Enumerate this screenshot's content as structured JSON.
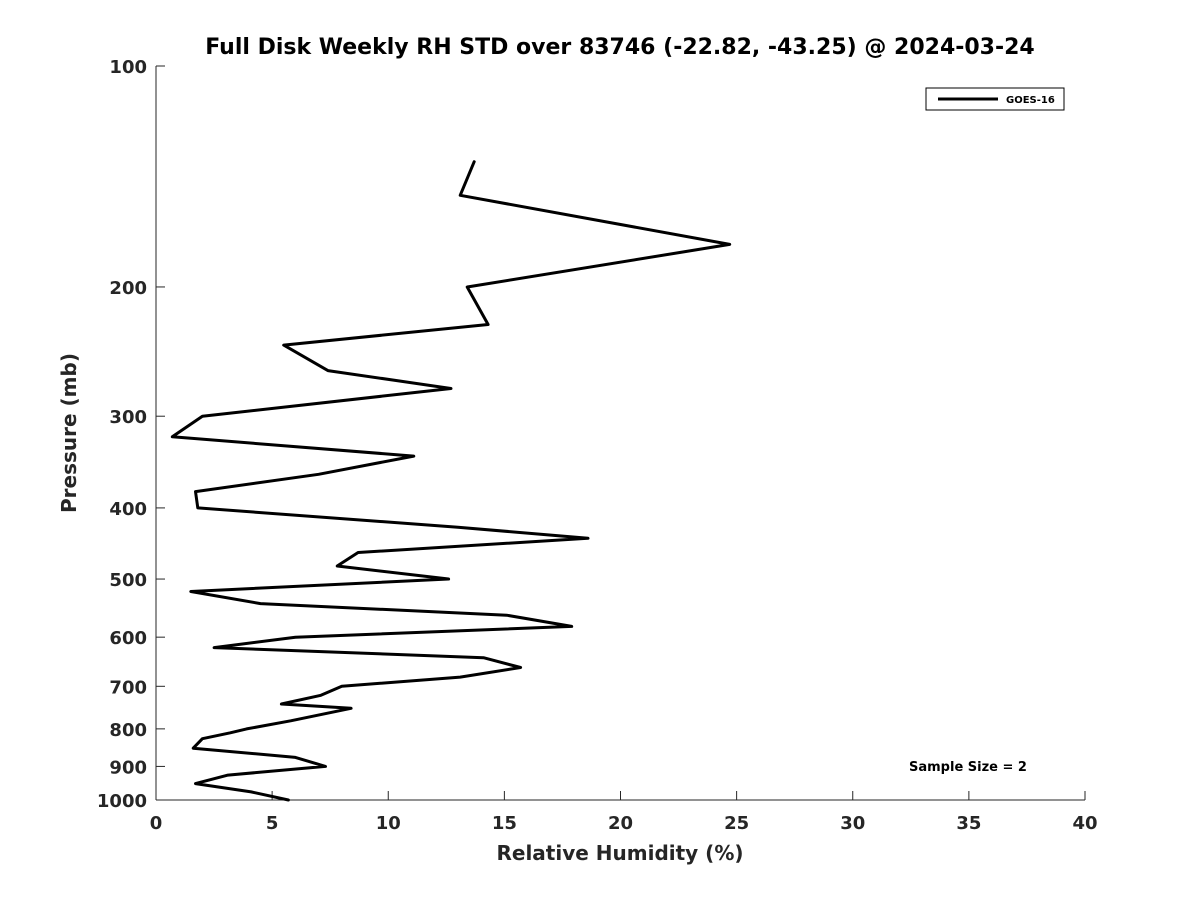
{
  "chart_data": {
    "type": "line",
    "title": "Full Disk Weekly RH STD over 83746 (-22.82, -43.25) @ 2024-03-24",
    "xlabel": "Relative Humidity (%)",
    "ylabel": "Pressure (mb)",
    "xlim": [
      0,
      40
    ],
    "ylim": [
      1000,
      100
    ],
    "yscale": "log",
    "grid": false,
    "legend_position": "top-right",
    "x_ticks": [
      0,
      5,
      10,
      15,
      20,
      25,
      30,
      35,
      40
    ],
    "y_ticks": [
      100,
      200,
      300,
      400,
      500,
      600,
      700,
      800,
      900,
      1000
    ],
    "series": [
      {
        "name": "GOES-16",
        "color": "#000000",
        "points": [
          [
            5.7,
            1000
          ],
          [
            4.1,
            975
          ],
          [
            1.7,
            950
          ],
          [
            3.1,
            925
          ],
          [
            7.3,
            900
          ],
          [
            6.0,
            875
          ],
          [
            1.6,
            850
          ],
          [
            2.0,
            825
          ],
          [
            3.2,
            810
          ],
          [
            3.9,
            800
          ],
          [
            5.8,
            780
          ],
          [
            8.4,
            750
          ],
          [
            5.4,
            740
          ],
          [
            7.1,
            720
          ],
          [
            8.0,
            700
          ],
          [
            13.1,
            680
          ],
          [
            15.7,
            660
          ],
          [
            14.1,
            640
          ],
          [
            2.5,
            620
          ],
          [
            6.0,
            600
          ],
          [
            17.9,
            580
          ],
          [
            15.1,
            560
          ],
          [
            4.5,
            540
          ],
          [
            1.5,
            520
          ],
          [
            12.6,
            500
          ],
          [
            7.8,
            480
          ],
          [
            8.7,
            460
          ],
          [
            18.6,
            440
          ],
          [
            13.0,
            425
          ],
          [
            1.8,
            400
          ],
          [
            1.7,
            380
          ],
          [
            7.0,
            360
          ],
          [
            11.1,
            340
          ],
          [
            0.7,
            320
          ],
          [
            2.0,
            300
          ],
          [
            12.7,
            275
          ],
          [
            7.4,
            260
          ],
          [
            5.5,
            240
          ],
          [
            14.3,
            225
          ],
          [
            13.4,
            200
          ],
          [
            24.7,
            175
          ],
          [
            13.1,
            150
          ],
          [
            13.7,
            135
          ]
        ]
      }
    ],
    "annotation": "Sample Size = 2"
  }
}
